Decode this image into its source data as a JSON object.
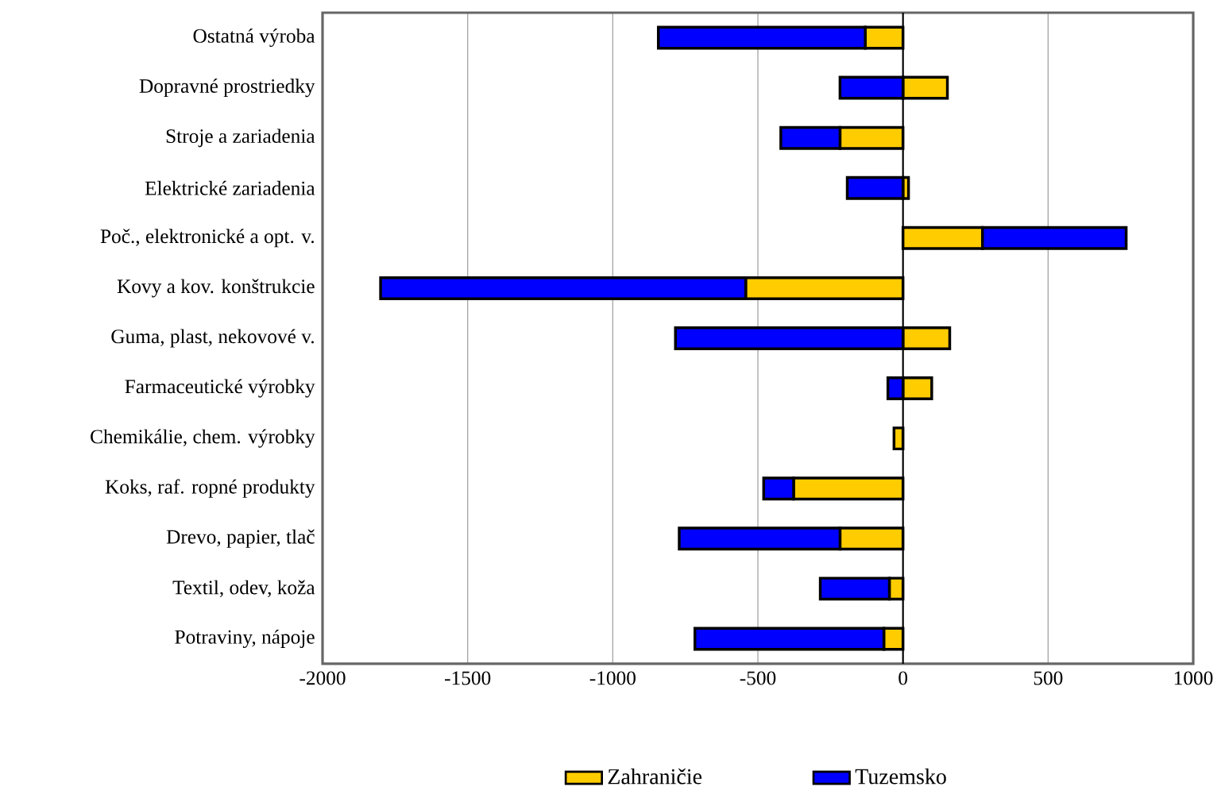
{
  "chart_data": {
    "type": "bar",
    "orientation": "horizontal",
    "stacked": true,
    "categories": [
      "Ostatná výroba",
      "Dopravné prostriedky",
      "Stroje a zariadenia",
      "Elektrické zariadenia",
      "Poč., elektronické a opt. v.",
      "Kovy a kov. konštrukcie",
      "Guma, plast, nekovové v.",
      "Farmaceutické výrobky",
      "Chemikálie, chem. výrobky",
      "Koks, raf. ropné produkty",
      "Drevo, papier, tlač",
      "Textil, odev, koža",
      "Potraviny, nápoje"
    ],
    "series": [
      {
        "name": "Zahraničie",
        "color": "#ffcc00",
        "values": [
          -130,
          153,
          -217,
          19,
          274,
          -542,
          161,
          99,
          -31,
          -377,
          -217,
          -47,
          -66
        ]
      },
      {
        "name": "Tuzemsko",
        "color": "#0000ff",
        "values": [
          -713,
          -217,
          -204,
          -192,
          495,
          -1258,
          -784,
          -52,
          0,
          -103,
          -554,
          -238,
          -651
        ]
      }
    ],
    "xlim": [
      -2000,
      1000
    ],
    "xticks": [
      -2000,
      -1500,
      -1000,
      -500,
      0,
      500,
      1000
    ],
    "grid": "x",
    "legend": "bottom"
  }
}
